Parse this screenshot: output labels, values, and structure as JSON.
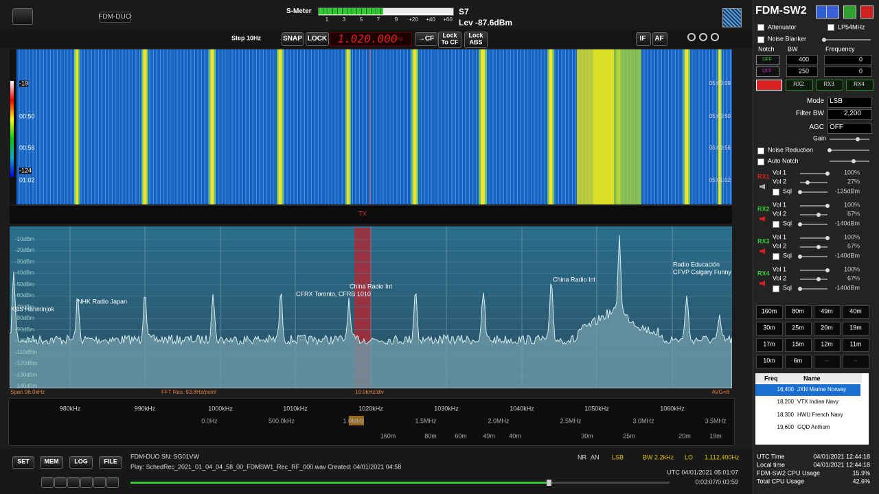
{
  "top": {
    "device": "FDM-DUO",
    "smeter_label": "S-Meter",
    "smeter_scale": [
      "1",
      "3",
      "5",
      "7",
      "9",
      "+20",
      "+40",
      "+60"
    ],
    "s_reading": "S7",
    "level": "Lev -87.6dBm"
  },
  "toolbar": {
    "step": "Step 10Hz",
    "snap": "SNAP",
    "lock": "LOCK",
    "frequency": "1.020.000",
    "freq_unit": "Hz",
    "to_cf": "→CF",
    "lock_to_cf": [
      "Lock",
      "To CF"
    ],
    "lock_abs": [
      "Lock",
      "ABS"
    ],
    "if": "IF",
    "af": "AF"
  },
  "waterfall": {
    "left_labels": [
      "-19",
      "00:50",
      "00:56",
      "-124",
      "01:02"
    ],
    "right_labels": [
      "05:00:09",
      "05:00:50",
      "05:00:56",
      "05:01:02"
    ],
    "tx": "TX"
  },
  "spectrum": {
    "db_labels": [
      "-10dBm",
      "-20dBm",
      "-30dBm",
      "-40dBm",
      "-50dBm",
      "-60dBm",
      "-70dBm",
      "-80dBm",
      "-90dBm",
      "-100dBm",
      "-110dBm",
      "-120dBm",
      "-130dBm",
      "-140dBm"
    ],
    "stations": [
      "KBS Hanminjok",
      "NHK Radio Japan",
      "CFRX Toronto, CFRB 1010",
      "China Radio Int",
      "China Radio Int",
      "Radio Educación",
      "CFVP Calgary Funny"
    ],
    "footer": [
      "Span 96.0kHz",
      "FFT Res. 93.8Hz/point",
      "10.0kHz/div",
      "AVG=8"
    ]
  },
  "scale": {
    "khz": [
      "980kHz",
      "990kHz",
      "1000kHz",
      "1010kHz",
      "1020kHz",
      "1030kHz",
      "1040kHz",
      "1050kHz",
      "1060kHz"
    ],
    "offset": [
      "0.0Hz",
      "500.0kHz",
      "1.0MHz",
      "1.5MHz",
      "2.0MHz",
      "2.5MHz",
      "3.0MHz",
      "3.5MHz"
    ],
    "meters": [
      "160m",
      "80m",
      "60m",
      "49m",
      "40m",
      "30m",
      "25m",
      "20m",
      "19m"
    ]
  },
  "bottom": {
    "buttons": [
      "SET",
      "MEM",
      "LOG",
      "FILE"
    ],
    "serial": "FDM-DUO SN: SG01VW",
    "playback": "Play: SchedRec_2021_01_04_04_58_00_FDMSW1_Rec_RF_000.wav Created: 04/01/2021 04:58",
    "status": [
      "NR",
      "AN",
      "LSB",
      "BW 2.2kHz",
      "LO",
      "1,112,400Hz"
    ],
    "utc": "UTC 04/01/2021 05:01:07",
    "elapsed": "0:03:07/0:03:59"
  },
  "panel": {
    "title": "FDM-SW2",
    "attenuator": "Attenuator",
    "lp": "LP54MHz",
    "noise_blanker": "Noise Blanker",
    "notch_headers": [
      "Notch",
      "BW",
      "Frequency"
    ],
    "notches": [
      {
        "state": "OFF",
        "bw": "400",
        "freq": "0"
      },
      {
        "state": "OFF",
        "bw": "250",
        "freq": "0"
      }
    ],
    "rx_buttons": [
      "RX2",
      "RX3",
      "RX4"
    ],
    "mode_label": "Mode",
    "mode": "LSB",
    "filter_label": "Filter BW",
    "filter": "2,200",
    "agc_label": "AGC",
    "agc": "OFF",
    "gain": "Gain",
    "noise_reduction": "Noise Reduction",
    "auto_notch": "Auto Notch",
    "vol1_label": "Vol 1",
    "vol2_label": "Vol 2",
    "sql_label": "Sql",
    "receivers": [
      {
        "name": "RX1",
        "vol1": "100%",
        "vol2": "27%",
        "sql": "-135dBm"
      },
      {
        "name": "RX2",
        "vol1": "100%",
        "vol2": "67%",
        "sql": "-140dBm"
      },
      {
        "name": "RX3",
        "vol1": "100%",
        "vol2": "67%",
        "sql": "-140dBm"
      },
      {
        "name": "RX4",
        "vol1": "100%",
        "vol2": "67%",
        "sql": "-140dBm"
      }
    ],
    "bands": [
      "160m",
      "80m",
      "49m",
      "40m",
      "30m",
      "25m",
      "20m",
      "19m",
      "17m",
      "15m",
      "12m",
      "11m",
      "10m",
      "6m",
      "--",
      "--"
    ],
    "memory": {
      "headers": [
        "Freq",
        "Name"
      ],
      "rows": [
        [
          "16,400",
          "JXN Marine Norway"
        ],
        [
          "18,200",
          "VTX Indian Navy"
        ],
        [
          "18,300",
          "HWU French Navy"
        ],
        [
          "19,600",
          "GQD Anthom"
        ]
      ]
    },
    "status": [
      [
        "UTC Time",
        "04/01/2021 12:44:18"
      ],
      [
        "Local time",
        "04/01/2021 12:44:18"
      ],
      [
        "FDM-SW2 CPU Usage",
        "15.9%"
      ],
      [
        "Total CPU Usage",
        "42.6%"
      ]
    ]
  }
}
